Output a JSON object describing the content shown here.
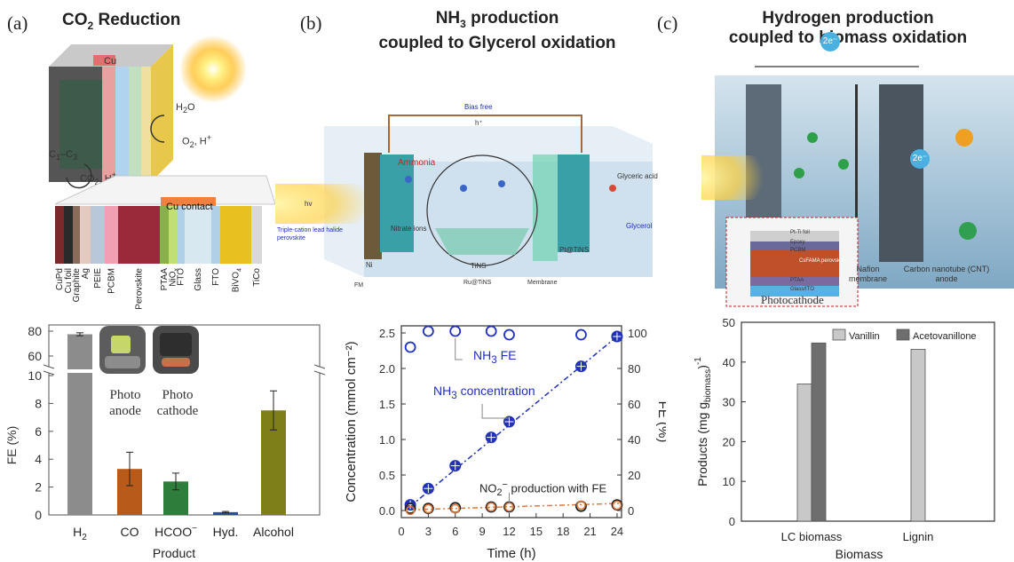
{
  "panel_a": {
    "label": "(a)",
    "title_main": "CO",
    "title_sub": "2",
    "title_rest": " Reduction",
    "cu_label": "Cu",
    "h2o_label": "H",
    "h2o_sub": "2",
    "h2o_rest": "O",
    "o2_label": "O",
    "o2_sub": "2",
    "o2_rest": ", H",
    "o2_sup": "+",
    "c1c3_label": "C",
    "c1c3_sub1": "1",
    "c1c3_mid": "–C",
    "c1c3_sub2": "3",
    "co2_label": "CO",
    "co2_sub": "2",
    "co2_rest": ", H",
    "co2_sup": "+",
    "cu_contact": "Cu contact",
    "layers": [
      "CuPd",
      "Cu foil",
      "Graphite",
      "Ag",
      "PEIE",
      "PCBM",
      "Perovskite",
      "PTAA",
      "NiOx",
      "FTO",
      "Glass",
      "FTO",
      "BiVO4",
      "TiCo"
    ],
    "photo_anode_label_1": "Photo",
    "photo_anode_label_2": "anode",
    "photo_cathode_label_1": "Photo",
    "photo_cathode_label_2": "cathode",
    "colors": {
      "h2": "#8c8c8c",
      "co": "#b85a1a",
      "hcoo": "#2f7d3a",
      "hyd": "#2b4c9a",
      "alcohol": "#7f7f1a"
    }
  },
  "panel_b": {
    "label": "(b)",
    "title_line1_pre": "NH",
    "title_line1_sub": "3",
    "title_line1_rest": " production",
    "title_line2": "coupled to Glycerol oxidation",
    "bias_free": "Bias free",
    "h_plus": "h⁺",
    "hv": "hv",
    "ammonia": "Ammonia",
    "nitrate_ions": "Nitrate ions",
    "triple_cation": "Triple-cation lead halide perovskite",
    "ni": "Ni",
    "fm": "FM",
    "tins": "TiNS",
    "ru_tins": "Ru@TiNS",
    "membrane": "Membrane",
    "pt_tins": "Pt@TiNS",
    "glyceric_acid": "Glyceric acid",
    "glycerol": "Glycerol",
    "nh3_fe_annot_pre": "NH",
    "nh3_fe_annot_sub": "3",
    "nh3_fe_annot_rest": " FE",
    "nh3_conc_annot_pre": "NH",
    "nh3_conc_annot_sub": "3",
    "nh3_conc_annot_rest": " concentration",
    "no2_annot_pre": "NO",
    "no2_annot_sub": "2",
    "no2_annot_sup": "−",
    "no2_annot_rest": " production with FE",
    "colors": {
      "conc": "#1f2fbf",
      "fe": "#1f2fbf",
      "no2": "#e07a3a"
    }
  },
  "panel_c": {
    "label": "(c)",
    "title_line1": "Hydrogen production",
    "title_line2": "coupled to biomass oxidation",
    "electron": "2e⁻",
    "photocathode": "Photocathode",
    "nafion": "Nafion membrane",
    "cnt_anode": "Carbon nanotube (CNT) anode",
    "stack_layers": [
      "Pt-Ti foil",
      "Epoxy",
      "PCBM",
      "CsFAMA perovskite",
      "PTAA",
      "Glass/ITO"
    ],
    "colors": {
      "vanillin": "#c8c8c8",
      "acetovanillone": "#6e6e6e"
    }
  },
  "chart_data": [
    {
      "type": "bar",
      "xlabel": "Product",
      "ylabel": "FE (%)",
      "categories": [
        "H2",
        "CO",
        "HCOO−",
        "Hyd.",
        "Alcohol"
      ],
      "values": [
        77.5,
        3.3,
        2.4,
        0.2,
        7.5
      ],
      "errors": [
        1.2,
        1.2,
        0.6,
        0.05,
        1.4
      ],
      "y_break": [
        10,
        55
      ],
      "ylim": [
        0,
        85
      ],
      "lower_yticks": [
        0,
        2,
        4,
        6,
        8,
        10
      ],
      "upper_yticks": [
        60,
        80
      ]
    },
    {
      "type": "scatter",
      "xlabel": "Time (h)",
      "ylabel_left": "Concentration (mmol cm⁻²)",
      "ylabel_right": "FE (%)",
      "xlim": [
        0,
        24.5
      ],
      "xticks": [
        0,
        3,
        6,
        9,
        12,
        15,
        18,
        21,
        24
      ],
      "ylim_left": [
        -0.1,
        2.6
      ],
      "yticks_left": [
        0.0,
        0.5,
        1.0,
        1.5,
        2.0,
        2.5
      ],
      "ylim_right": [
        -4,
        104
      ],
      "yticks_right": [
        0,
        20,
        40,
        60,
        80,
        100
      ],
      "series": [
        {
          "name": "NH3 concentration",
          "axis": "left",
          "x": [
            1,
            3,
            6,
            10,
            12,
            20,
            24
          ],
          "y": [
            0.08,
            0.31,
            0.63,
            1.03,
            1.25,
            2.03,
            2.45
          ]
        },
        {
          "name": "NH3 FE",
          "axis": "right",
          "x": [
            1,
            3,
            6,
            10,
            12,
            20,
            24
          ],
          "y": [
            92,
            101,
            101,
            101,
            99,
            99,
            98
          ]
        },
        {
          "name": "NO2− concentration",
          "axis": "left",
          "x": [
            1,
            3,
            6,
            10,
            12,
            20,
            24
          ],
          "y": [
            0.03,
            0.03,
            0.04,
            0.05,
            0.05,
            0.06,
            0.08
          ]
        },
        {
          "name": "NO2− FE",
          "axis": "right",
          "x": [
            1,
            3,
            6,
            10,
            12,
            20,
            24
          ],
          "y": [
            0,
            1,
            1,
            2,
            2,
            3,
            3
          ]
        }
      ]
    },
    {
      "type": "bar",
      "xlabel": "Biomass",
      "ylabel": "Products (mg g",
      "ylabel_sub": "biomass",
      "ylabel_end": ")",
      "ylabel_sup": "-1",
      "categories": [
        "LC biomass",
        "Lignin"
      ],
      "series": [
        {
          "name": "Vanillin",
          "values": [
            34.5,
            43.2
          ]
        },
        {
          "name": "Acetovanillone",
          "values": [
            44.8,
            0
          ]
        }
      ],
      "ylim": [
        0,
        50
      ],
      "yticks": [
        0,
        10,
        20,
        30,
        40,
        50
      ],
      "legend": "top-center"
    }
  ]
}
